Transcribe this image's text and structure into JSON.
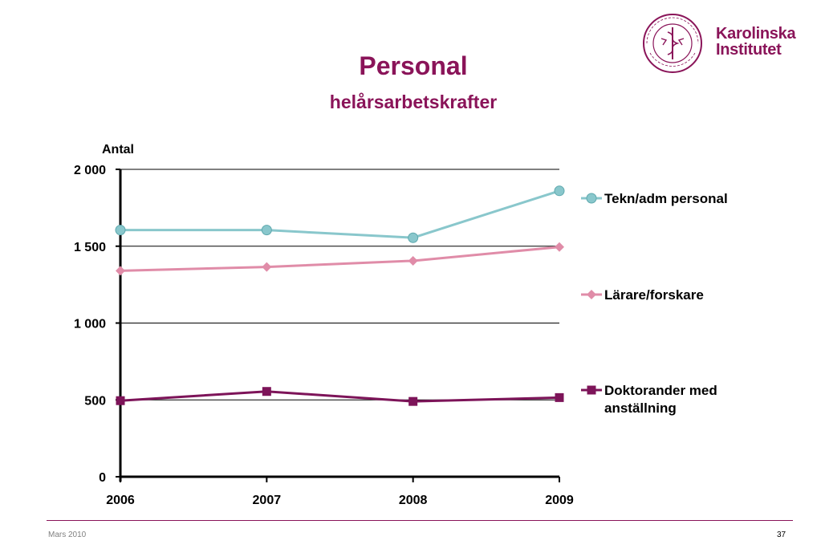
{
  "slide": {
    "title": "Personal",
    "subtitle": "helårsarbetskrafter",
    "logo_line1": "Karolinska",
    "logo_line2": "Institutet",
    "footer_date": "Mars 2010",
    "page_number": "37"
  },
  "colors": {
    "title": "#8a1459",
    "series_tekn": "#89c7cc",
    "series_larare": "#e08ca8",
    "series_doktorander": "#7d1459"
  },
  "chart_data": {
    "type": "line",
    "ylabel": "Antal",
    "xlabel": "",
    "x": [
      "2006",
      "2007",
      "2008",
      "2009"
    ],
    "ylim": [
      0,
      2000
    ],
    "yticks": [
      0,
      500,
      1000,
      1500,
      2000
    ],
    "ytick_labels": [
      "0",
      "500",
      "1 000",
      "1 500",
      "2 000"
    ],
    "grid": "horizontal",
    "legend_position": "right",
    "series": [
      {
        "name": "Tekn/adm personal",
        "values": [
          1605,
          1605,
          1555,
          1860
        ],
        "marker": "circle",
        "color": "#89c7cc"
      },
      {
        "name": "Lärare/forskare",
        "values": [
          1340,
          1365,
          1405,
          1495
        ],
        "marker": "diamond",
        "color": "#e08ca8"
      },
      {
        "name": "Doktorander med anställning",
        "legend_lines": [
          "Doktorander med",
          "anställning"
        ],
        "values": [
          495,
          555,
          490,
          515
        ],
        "marker": "square",
        "color": "#7d1459"
      }
    ]
  }
}
